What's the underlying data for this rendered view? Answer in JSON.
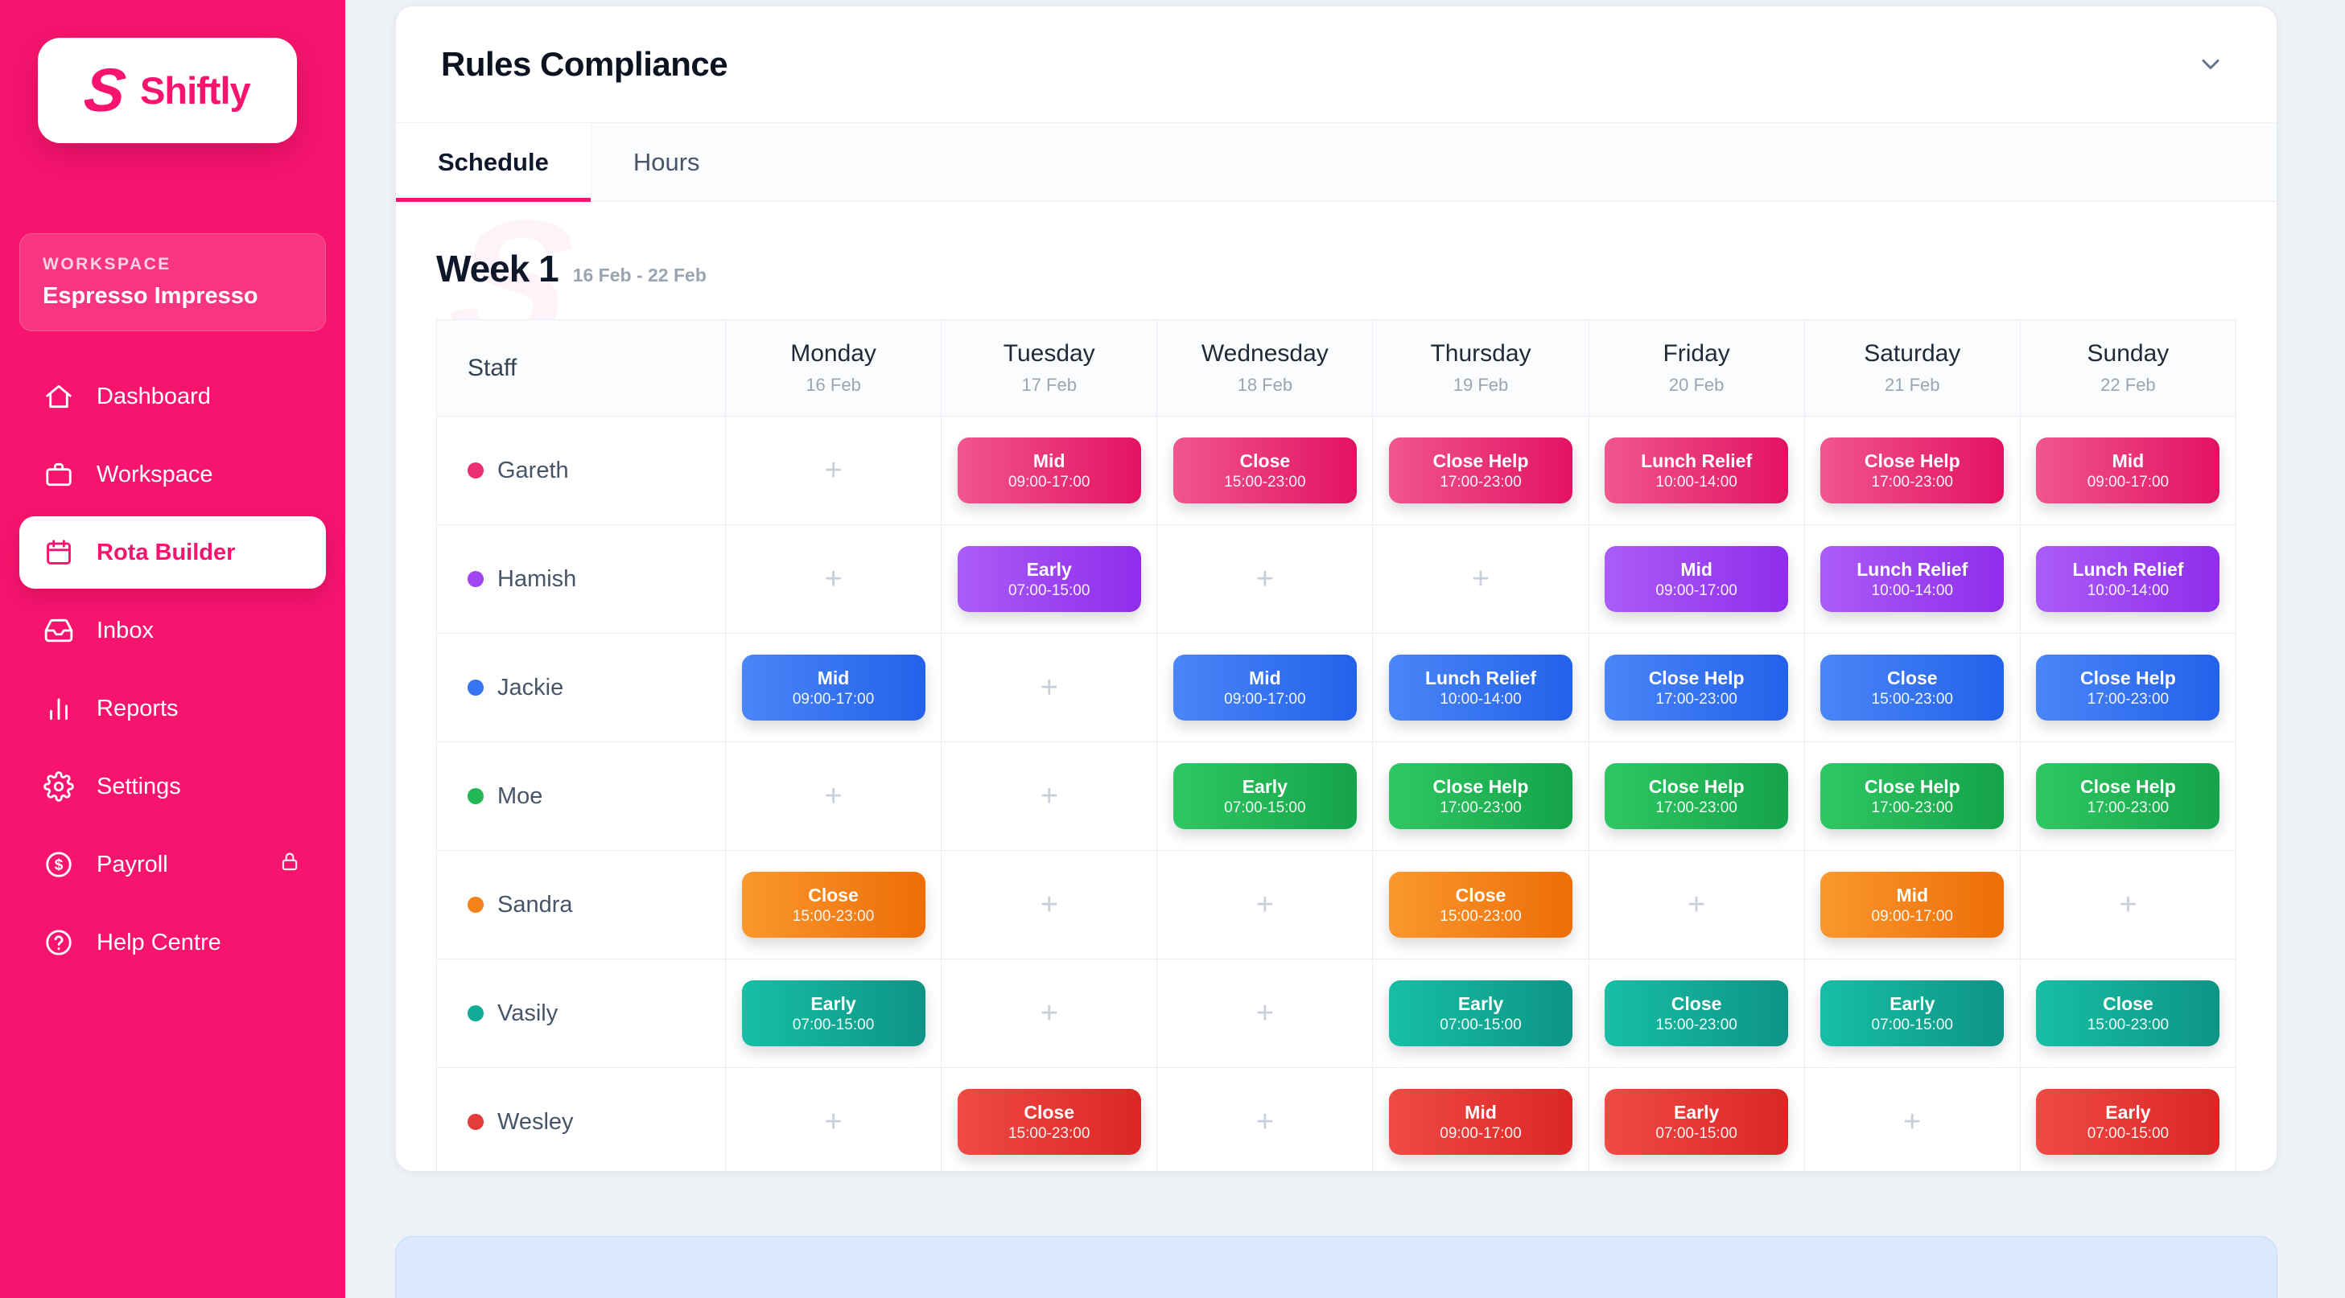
{
  "colors": {
    "brand": "#f6146e",
    "page_background": "#eef1f6",
    "next_panel_background": "#dbe8fd",
    "next_panel_border": "#c3d8fb"
  },
  "sidebar": {
    "brand": "Shiftly",
    "logo_icon": "shiftly-s-icon",
    "workspace_label": "WORKSPACE",
    "workspace_name": "Espresso Impresso",
    "items": [
      {
        "label": "Dashboard",
        "icon": "home-icon",
        "active": false
      },
      {
        "label": "Workspace",
        "icon": "briefcase-icon",
        "active": false
      },
      {
        "label": "Rota Builder",
        "icon": "calendar-icon",
        "active": true
      },
      {
        "label": "Inbox",
        "icon": "inbox-icon",
        "active": false
      },
      {
        "label": "Reports",
        "icon": "bar-chart-icon",
        "active": false
      },
      {
        "label": "Settings",
        "icon": "gear-icon",
        "active": false
      },
      {
        "label": "Payroll",
        "icon": "dollar-circle-icon",
        "active": false,
        "locked": true,
        "lock_icon": "lock-icon"
      },
      {
        "label": "Help Centre",
        "icon": "help-circle-icon",
        "active": false
      }
    ]
  },
  "panel": {
    "title": "Rules Compliance",
    "collapse_icon": "chevron-down-icon",
    "tabs": [
      {
        "label": "Schedule",
        "active": true
      },
      {
        "label": "Hours",
        "active": false
      }
    ],
    "week_title": "Week 1",
    "week_range": "16 Feb - 22 Feb"
  },
  "schedule": {
    "staff_header": "Staff",
    "empty_cell_label": "+",
    "days": [
      {
        "name": "Monday",
        "date": "16 Feb"
      },
      {
        "name": "Tuesday",
        "date": "17 Feb"
      },
      {
        "name": "Wednesday",
        "date": "18 Feb"
      },
      {
        "name": "Thursday",
        "date": "19 Feb"
      },
      {
        "name": "Friday",
        "date": "20 Feb"
      },
      {
        "name": "Saturday",
        "date": "21 Feb"
      },
      {
        "name": "Sunday",
        "date": "22 Feb"
      }
    ],
    "staff": [
      {
        "name": "Gareth",
        "color": "#ec2d72",
        "gradient": [
          "#f0568d",
          "#e31263"
        ],
        "shifts": [
          null,
          {
            "label": "Mid",
            "time": "09:00-17:00"
          },
          {
            "label": "Close",
            "time": "15:00-23:00"
          },
          {
            "label": "Close Help",
            "time": "17:00-23:00"
          },
          {
            "label": "Lunch Relief",
            "time": "10:00-14:00"
          },
          {
            "label": "Close Help",
            "time": "17:00-23:00"
          },
          {
            "label": "Mid",
            "time": "09:00-17:00"
          }
        ]
      },
      {
        "name": "Hamish",
        "color": "#9f45f2",
        "gradient": [
          "#ab5cf7",
          "#8f2deb"
        ],
        "shifts": [
          null,
          {
            "label": "Early",
            "time": "07:00-15:00"
          },
          null,
          null,
          {
            "label": "Mid",
            "time": "09:00-17:00"
          },
          {
            "label": "Lunch Relief",
            "time": "10:00-14:00"
          },
          {
            "label": "Lunch Relief",
            "time": "10:00-14:00"
          }
        ]
      },
      {
        "name": "Jackie",
        "color": "#3674f3",
        "gradient": [
          "#4a86f7",
          "#2361ea"
        ],
        "shifts": [
          {
            "label": "Mid",
            "time": "09:00-17:00"
          },
          null,
          {
            "label": "Mid",
            "time": "09:00-17:00"
          },
          {
            "label": "Lunch Relief",
            "time": "10:00-14:00"
          },
          {
            "label": "Close Help",
            "time": "17:00-23:00"
          },
          {
            "label": "Close",
            "time": "15:00-23:00"
          },
          {
            "label": "Close Help",
            "time": "17:00-23:00"
          }
        ]
      },
      {
        "name": "Moe",
        "color": "#22b757",
        "gradient": [
          "#2fc763",
          "#15a349"
        ],
        "shifts": [
          null,
          null,
          {
            "label": "Early",
            "time": "07:00-15:00"
          },
          {
            "label": "Close Help",
            "time": "17:00-23:00"
          },
          {
            "label": "Close Help",
            "time": "17:00-23:00"
          },
          {
            "label": "Close Help",
            "time": "17:00-23:00"
          },
          {
            "label": "Close Help",
            "time": "17:00-23:00"
          }
        ]
      },
      {
        "name": "Sandra",
        "color": "#f5821a",
        "gradient": [
          "#f9982e",
          "#ee6d06"
        ],
        "shifts": [
          {
            "label": "Close",
            "time": "15:00-23:00"
          },
          null,
          null,
          {
            "label": "Close",
            "time": "15:00-23:00"
          },
          null,
          {
            "label": "Mid",
            "time": "09:00-17:00"
          },
          null
        ]
      },
      {
        "name": "Vasily",
        "color": "#12ac96",
        "gradient": [
          "#17bfa4",
          "#0d9485"
        ],
        "shifts": [
          {
            "label": "Early",
            "time": "07:00-15:00"
          },
          null,
          null,
          {
            "label": "Early",
            "time": "07:00-15:00"
          },
          {
            "label": "Close",
            "time": "15:00-23:00"
          },
          {
            "label": "Early",
            "time": "07:00-15:00"
          },
          {
            "label": "Close",
            "time": "15:00-23:00"
          }
        ]
      },
      {
        "name": "Wesley",
        "color": "#e63b3b",
        "gradient": [
          "#ef4a44",
          "#dc2626"
        ],
        "shifts": [
          null,
          {
            "label": "Close",
            "time": "15:00-23:00"
          },
          null,
          {
            "label": "Mid",
            "time": "09:00-17:00"
          },
          {
            "label": "Early",
            "time": "07:00-15:00"
          },
          null,
          {
            "label": "Early",
            "time": "07:00-15:00"
          }
        ]
      }
    ]
  }
}
